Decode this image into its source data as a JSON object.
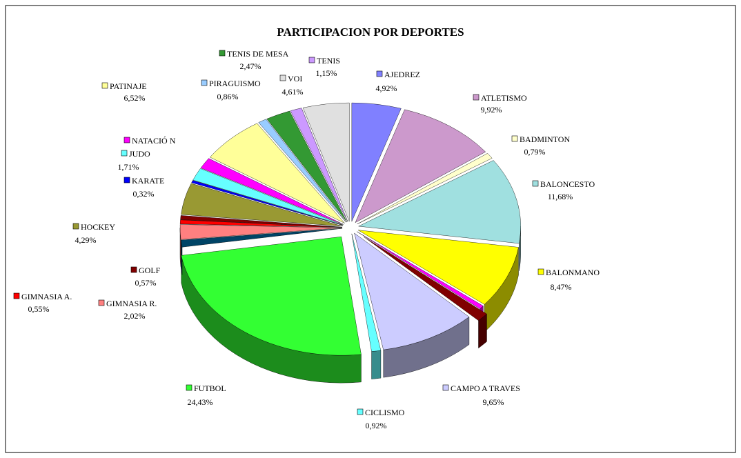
{
  "chart_data": {
    "type": "pie",
    "title": "PARTICIPACION POR DEPORTES",
    "categories": [
      "AJEDREZ",
      "ATLETISMO",
      "BADMINTON",
      "BALONCESTO",
      "BALONMANO",
      null,
      null,
      "CAMPO A TRAVES",
      "CICLISMO",
      "FUTBOL",
      null,
      "GIMNASIA R.",
      "GIMNASIA A.",
      "GOLF",
      "HOCKEY",
      "KARATE",
      "JUDO",
      "NATACIÓ N",
      "PATINAJE",
      "PIRAGUISMO",
      "TENIS DE MESA",
      "TENIS",
      "VOI"
    ],
    "values": [
      4.92,
      9.92,
      0.79,
      11.68,
      8.47,
      0.5,
      1.2,
      9.65,
      0.92,
      24.43,
      0.95,
      2.02,
      0.55,
      0.57,
      4.29,
      0.32,
      1.71,
      1.5,
      6.52,
      0.86,
      2.47,
      1.15,
      4.61
    ],
    "value_labels": [
      "4,92%",
      "9,92%",
      "0,79%",
      "11,68%",
      "8,47%",
      null,
      null,
      "9,65%",
      "0,92%",
      "24,43%",
      null,
      "2,02%",
      "0,55%",
      "0,57%",
      "4,29%",
      "0,32%",
      "1,71%",
      null,
      "6,52%",
      "0,86%",
      "2,47%",
      "1,15%",
      "4,61%"
    ],
    "colors": [
      "#8080ff",
      "#cc99cc",
      "#ffffcc",
      "#a0e0e0",
      "#ffff00",
      "#ff00ff",
      "#800000",
      "#ccccff",
      "#66ffff",
      "#33ff33",
      "#004466",
      "#ff8080",
      "#ff0000",
      "#800000",
      "#999933",
      "#0000ff",
      "#66ffff",
      "#ff00ff",
      "#ffff99",
      "#99ccff",
      "#339933",
      "#cc99ff",
      "#e0e0e0"
    ]
  }
}
